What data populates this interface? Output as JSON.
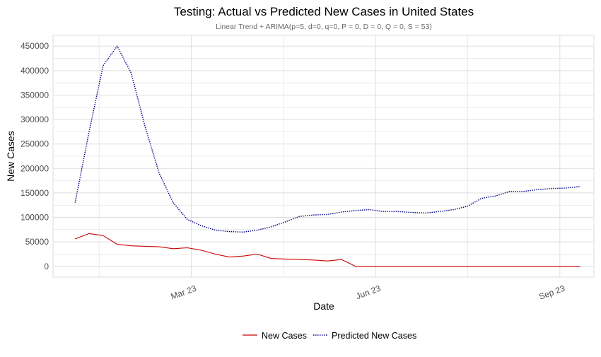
{
  "chart_data": {
    "type": "line",
    "title": "Testing: Actual vs Predicted New Cases in United States",
    "subtitle": "Linear Trend + ARIMA(p=5, d=0, q=0, P = 0, D = 0, Q = 0, S = 53)",
    "xlabel": "Date",
    "ylabel": "New Cases",
    "x_ticks": [
      {
        "label": "Mar 23",
        "date": "2023-03-01"
      },
      {
        "label": "Jun 23",
        "date": "2023-06-01"
      },
      {
        "label": "Sep 23",
        "date": "2023-09-01"
      }
    ],
    "y_ticks": [
      0,
      50000,
      100000,
      150000,
      200000,
      250000,
      300000,
      350000,
      400000,
      450000
    ],
    "ylim": [
      -22000,
      472000
    ],
    "xlim": [
      "2022-12-22",
      "2023-09-18"
    ],
    "grid": true,
    "legend_position": "bottom",
    "colors": {
      "actual": "#cc0000",
      "predicted": "#00008b",
      "grid": "#dedede"
    },
    "series": [
      {
        "name": "New Cases",
        "style": "solid",
        "color": "#cc0000",
        "points": [
          [
            "2023-01-02",
            56000
          ],
          [
            "2023-01-09",
            67000
          ],
          [
            "2023-01-16",
            63000
          ],
          [
            "2023-01-23",
            45000
          ],
          [
            "2023-01-30",
            42000
          ],
          [
            "2023-02-06",
            41000
          ],
          [
            "2023-02-13",
            40000
          ],
          [
            "2023-02-20",
            36000
          ],
          [
            "2023-02-27",
            38000
          ],
          [
            "2023-03-06",
            33000
          ],
          [
            "2023-03-13",
            25000
          ],
          [
            "2023-03-20",
            19000
          ],
          [
            "2023-03-27",
            21000
          ],
          [
            "2023-04-03",
            25000
          ],
          [
            "2023-04-10",
            16000
          ],
          [
            "2023-04-17",
            15000
          ],
          [
            "2023-04-24",
            14000
          ],
          [
            "2023-05-01",
            13000
          ],
          [
            "2023-05-08",
            11000
          ],
          [
            "2023-05-15",
            14000
          ],
          [
            "2023-05-22",
            0
          ],
          [
            "2023-05-29",
            0
          ],
          [
            "2023-06-05",
            0
          ],
          [
            "2023-06-12",
            0
          ],
          [
            "2023-06-19",
            0
          ],
          [
            "2023-06-26",
            0
          ],
          [
            "2023-07-03",
            0
          ],
          [
            "2023-07-10",
            0
          ],
          [
            "2023-07-17",
            0
          ],
          [
            "2023-07-24",
            0
          ],
          [
            "2023-07-31",
            0
          ],
          [
            "2023-08-07",
            0
          ],
          [
            "2023-08-14",
            0
          ],
          [
            "2023-08-21",
            0
          ],
          [
            "2023-08-28",
            0
          ],
          [
            "2023-09-04",
            0
          ],
          [
            "2023-09-11",
            0
          ]
        ]
      },
      {
        "name": "Predicted New Cases",
        "style": "dotted",
        "color": "#00008b",
        "points": [
          [
            "2023-01-02",
            130000
          ],
          [
            "2023-01-09",
            275000
          ],
          [
            "2023-01-16",
            410000
          ],
          [
            "2023-01-23",
            450000
          ],
          [
            "2023-01-30",
            395000
          ],
          [
            "2023-02-06",
            285000
          ],
          [
            "2023-02-13",
            190000
          ],
          [
            "2023-02-20",
            130000
          ],
          [
            "2023-02-27",
            96000
          ],
          [
            "2023-03-06",
            83000
          ],
          [
            "2023-03-13",
            74000
          ],
          [
            "2023-03-20",
            71000
          ],
          [
            "2023-03-27",
            70000
          ],
          [
            "2023-04-03",
            74000
          ],
          [
            "2023-04-10",
            81000
          ],
          [
            "2023-04-17",
            91000
          ],
          [
            "2023-04-24",
            102000
          ],
          [
            "2023-05-01",
            105000
          ],
          [
            "2023-05-08",
            106000
          ],
          [
            "2023-05-15",
            111000
          ],
          [
            "2023-05-22",
            114000
          ],
          [
            "2023-05-29",
            116000
          ],
          [
            "2023-06-05",
            112000
          ],
          [
            "2023-06-12",
            112000
          ],
          [
            "2023-06-19",
            110000
          ],
          [
            "2023-06-26",
            109000
          ],
          [
            "2023-07-03",
            112000
          ],
          [
            "2023-07-10",
            116000
          ],
          [
            "2023-07-17",
            123000
          ],
          [
            "2023-07-24",
            139000
          ],
          [
            "2023-07-31",
            144000
          ],
          [
            "2023-08-07",
            153000
          ],
          [
            "2023-08-14",
            153000
          ],
          [
            "2023-08-21",
            157000
          ],
          [
            "2023-08-28",
            159000
          ],
          [
            "2023-09-04",
            160000
          ],
          [
            "2023-09-11",
            163000
          ]
        ]
      }
    ]
  }
}
